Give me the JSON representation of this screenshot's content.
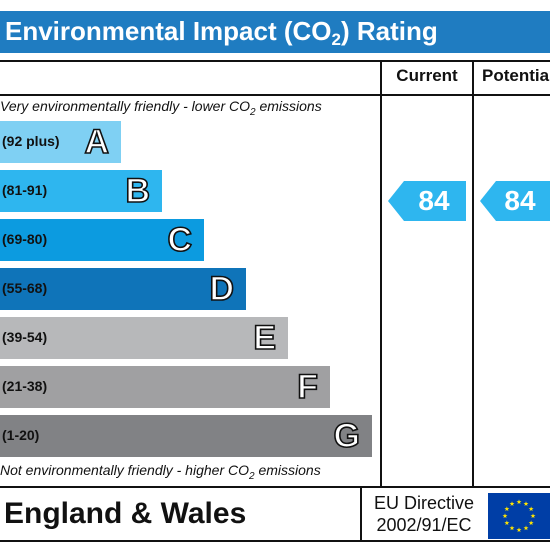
{
  "header": {
    "title_prefix": "Environmental Impact (CO",
    "title_sub": "2",
    "title_suffix": ") Rating",
    "background_color": "#1f7cc1"
  },
  "columns": {
    "current_label": "Current",
    "potential_label": "Potential"
  },
  "notes": {
    "top_prefix": "Very environmentally friendly - lower CO",
    "top_sub": "2",
    "top_suffix": " emissions",
    "bottom_prefix": "Not environmentally friendly - higher CO",
    "bottom_sub": "2",
    "bottom_suffix": " emissions"
  },
  "bands": [
    {
      "range": "(92 plus)",
      "letter": "A",
      "color": "#7fd0f3"
    },
    {
      "range": "(81-91)",
      "letter": "B",
      "color": "#2eb6ef"
    },
    {
      "range": "(69-80)",
      "letter": "C",
      "color": "#0c9be0"
    },
    {
      "range": "(55-68)",
      "letter": "D",
      "color": "#0f74b9"
    },
    {
      "range": "(39-54)",
      "letter": "E",
      "color": "#b7b8ba"
    },
    {
      "range": "(21-38)",
      "letter": "F",
      "color": "#a0a0a2"
    },
    {
      "range": "(1-20)",
      "letter": "G",
      "color": "#818285"
    }
  ],
  "ratings": {
    "current": {
      "value": "84",
      "band": "B",
      "color": "#2eb6ef"
    },
    "potential": {
      "value": "84",
      "band": "B",
      "color": "#2eb6ef"
    }
  },
  "footer": {
    "region": "England & Wales",
    "directive_line1": "EU Directive",
    "directive_line2": "2002/91/EC",
    "flag_color": "#003ea6",
    "star_color": "#ffe500"
  }
}
